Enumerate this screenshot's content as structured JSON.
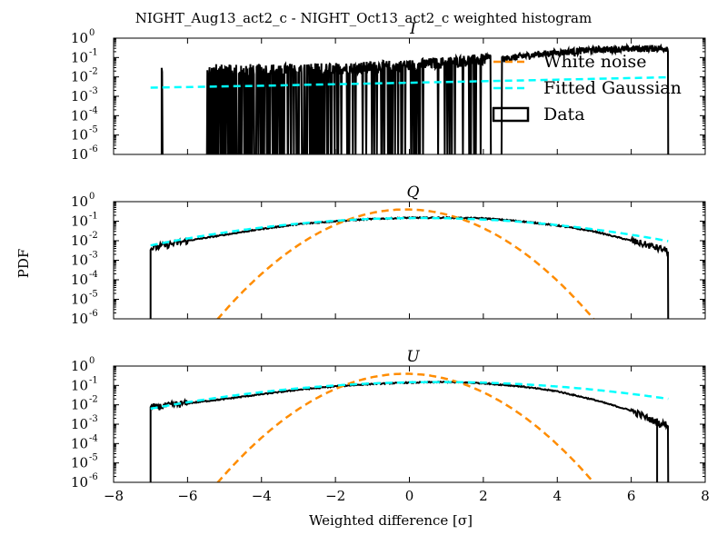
{
  "chart_data": {
    "type": "line",
    "title": "NIGHT_Aug13_act2_c - NIGHT_Oct13_act2_c weighted histogram",
    "xlabel": "Weighted difference [σ]",
    "ylabel": "PDF",
    "xlim": [
      -8,
      8
    ],
    "xticks": [
      "−8",
      "−6",
      "−4",
      "−2",
      "0",
      "2",
      "4",
      "6",
      "8"
    ],
    "ylim": [
      1e-06,
      1
    ],
    "yscale": "log",
    "yticks": [
      {
        "base": "10",
        "exp": "0"
      },
      {
        "base": "10",
        "exp": "-1"
      },
      {
        "base": "10",
        "exp": "-2"
      },
      {
        "base": "10",
        "exp": "-3"
      },
      {
        "base": "10",
        "exp": "-4"
      },
      {
        "base": "10",
        "exp": "-5"
      },
      {
        "base": "10",
        "exp": "-6"
      }
    ],
    "grid": false,
    "legend": {
      "placement": "upper-right of first panel",
      "entries": [
        {
          "label": "White noise",
          "color": "#ff8c00",
          "style": "dashed"
        },
        {
          "label": "Fitted Gaussian",
          "color": "#00ffff",
          "style": "dashed"
        },
        {
          "label": "Data",
          "color": "#000000",
          "style": "box"
        }
      ]
    },
    "colors": {
      "white_noise": "#ff8c00",
      "fitted_gaussian": "#00ffff",
      "data": "#000000"
    },
    "panels": [
      {
        "title": "I",
        "data_range": [
          -6.7,
          7.0
        ],
        "data_trend": {
          "x": [
            -6.7,
            -5.5,
            -4,
            -2,
            0,
            2,
            3.5,
            5,
            6,
            7
          ],
          "y": [
            0.018,
            0.018,
            0.018,
            0.02,
            0.03,
            0.06,
            0.15,
            0.25,
            0.28,
            0.3
          ]
        },
        "white_noise": null,
        "fitted_gaussian": {
          "x": [
            -7,
            -4,
            -2,
            0,
            2,
            4,
            6,
            7
          ],
          "y": [
            0.0028,
            0.0035,
            0.0042,
            0.005,
            0.006,
            0.0072,
            0.0088,
            0.0095
          ]
        }
      },
      {
        "title": "Q",
        "data_range": [
          -7.0,
          7.0
        ],
        "data_trend": {
          "x": [
            -7,
            -6,
            -5,
            -4,
            -3,
            -2,
            -1,
            0,
            1,
            2,
            3,
            4,
            5,
            6,
            7
          ],
          "y": [
            0.004,
            0.01,
            0.02,
            0.04,
            0.07,
            0.1,
            0.13,
            0.15,
            0.15,
            0.14,
            0.1,
            0.06,
            0.03,
            0.01,
            0.003
          ]
        },
        "white_noise": {
          "mu": -0.1,
          "sigma": 1.0,
          "peak": 0.4
        },
        "fitted_gaussian": {
          "mu": 0.3,
          "sigma": 2.87,
          "peak": 0.145
        }
      },
      {
        "title": "U",
        "data_range": [
          -7.0,
          7.0
        ],
        "data_trend": {
          "x": [
            -7,
            -6,
            -5,
            -4,
            -3,
            -2,
            -1,
            0,
            1,
            2,
            3,
            4,
            5,
            6,
            6.8
          ],
          "y": [
            0.007,
            0.012,
            0.02,
            0.035,
            0.06,
            0.09,
            0.12,
            0.14,
            0.15,
            0.13,
            0.09,
            0.05,
            0.018,
            0.005,
            0.001
          ]
        },
        "white_noise": {
          "mu": -0.1,
          "sigma": 1.0,
          "peak": 0.4
        },
        "fitted_gaussian": {
          "mu": 0.8,
          "sigma": 3.1,
          "peak": 0.15
        }
      }
    ]
  }
}
